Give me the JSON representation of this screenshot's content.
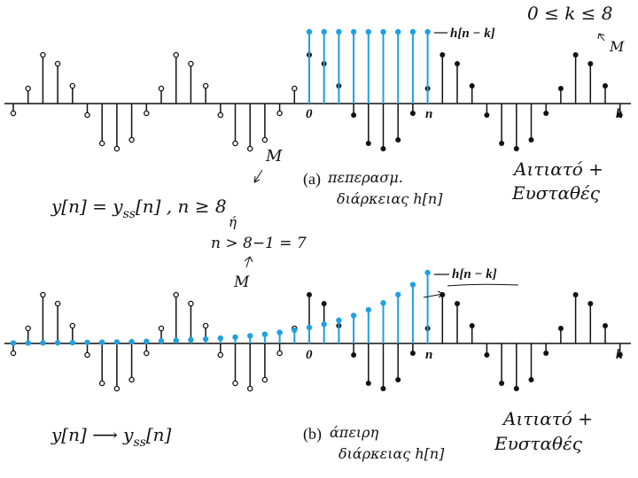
{
  "panel_a": {
    "stem_label": "h[n − k]",
    "axis_labels": [
      "0",
      "n",
      "k"
    ],
    "caption_label": "(a)",
    "caption": [
      "πεπερασμ.",
      "διάρκειας h[n]"
    ],
    "note": [
      "Αιτιατό +",
      "Ευσταθές"
    ],
    "range": "0 ≤ k ≤ 8",
    "range_mark": "M"
  },
  "equation_a": {
    "parts": [
      "y[n] = y",
      "ss",
      "[n] , n ≥ 8"
    ],
    "mark_top": "M",
    "or": "ή",
    "alt": "n > 8−1 = 7",
    "mark_bottom": "M"
  },
  "panel_b": {
    "stem_label": "h[n − k]",
    "axis_labels": [
      "0",
      "n",
      "k"
    ],
    "caption_label": "(b)",
    "caption": [
      "άπειρη",
      "διάρκειας h[n]"
    ],
    "note": [
      "Αιτιατό +",
      "Ευσταθές"
    ]
  },
  "equation_b": {
    "parts": [
      "y[n] ⟶ y",
      "ss",
      "[n]"
    ]
  }
}
